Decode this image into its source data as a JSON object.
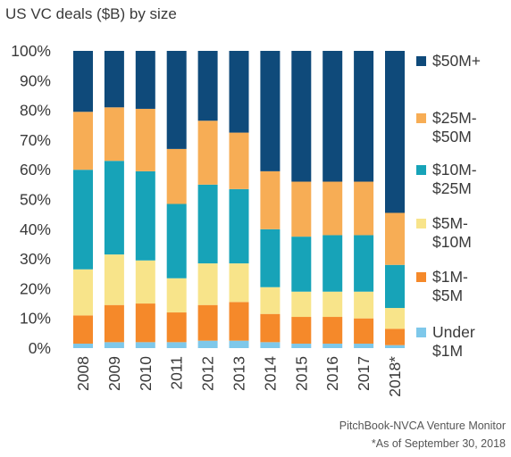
{
  "chart_data": {
    "type": "bar",
    "stacked": true,
    "normalized": true,
    "title": "US VC deals ($B) by size",
    "categories": [
      "2008",
      "2009",
      "2010",
      "2011",
      "2012",
      "2013",
      "2014",
      "2015",
      "2016",
      "2017",
      "2018*"
    ],
    "ylim": [
      0,
      100
    ],
    "yticks": [
      "0%",
      "10%",
      "20%",
      "30%",
      "40%",
      "50%",
      "60%",
      "70%",
      "80%",
      "90%",
      "100%"
    ],
    "grid": false,
    "legend_position": "right",
    "series": [
      {
        "name": "Under $1M",
        "color": "#7ec8ea",
        "values": [
          1.5,
          2.0,
          2.0,
          2.0,
          2.5,
          2.5,
          2.0,
          1.5,
          1.5,
          1.5,
          1.0
        ]
      },
      {
        "name": "$1M-$5M",
        "color": "#f5892a",
        "values": [
          9.5,
          12.5,
          13.0,
          10.0,
          12.0,
          13.0,
          9.5,
          9.0,
          9.0,
          8.5,
          5.5
        ]
      },
      {
        "name": "$5M-$10M",
        "color": "#f8e48a",
        "values": [
          15.5,
          17.0,
          14.5,
          11.5,
          14.0,
          13.0,
          9.0,
          8.5,
          8.5,
          9.0,
          7.0
        ]
      },
      {
        "name": "$10M-$25M",
        "color": "#17a3b8",
        "values": [
          33.5,
          31.5,
          30.0,
          25.0,
          26.5,
          25.0,
          19.5,
          18.5,
          19.0,
          19.0,
          14.5
        ]
      },
      {
        "name": "$25M-$50M",
        "color": "#f7ad55",
        "values": [
          19.5,
          18.0,
          21.0,
          18.5,
          21.5,
          19.0,
          19.5,
          18.5,
          18.0,
          18.0,
          17.5
        ]
      },
      {
        "name": "$50M+",
        "color": "#0f4a7a",
        "values": [
          20.5,
          19.0,
          19.5,
          33.0,
          23.5,
          27.5,
          40.5,
          44.0,
          44.0,
          44.0,
          54.5
        ]
      }
    ]
  },
  "legend": [
    {
      "label": "$50M+",
      "color": "#0f4a7a"
    },
    {
      "label": "$25M-\n$50M",
      "color": "#f7ad55"
    },
    {
      "label": "$10M-\n$25M",
      "color": "#17a3b8"
    },
    {
      "label": "$5M-\n$10M",
      "color": "#f8e48a"
    },
    {
      "label": "$1M-\n$5M",
      "color": "#f5892a"
    },
    {
      "label": "Under\n$1M",
      "color": "#7ec8ea"
    }
  ],
  "source": "PitchBook-NVCA Venture Monitor",
  "note": "*As of September 30, 2018"
}
